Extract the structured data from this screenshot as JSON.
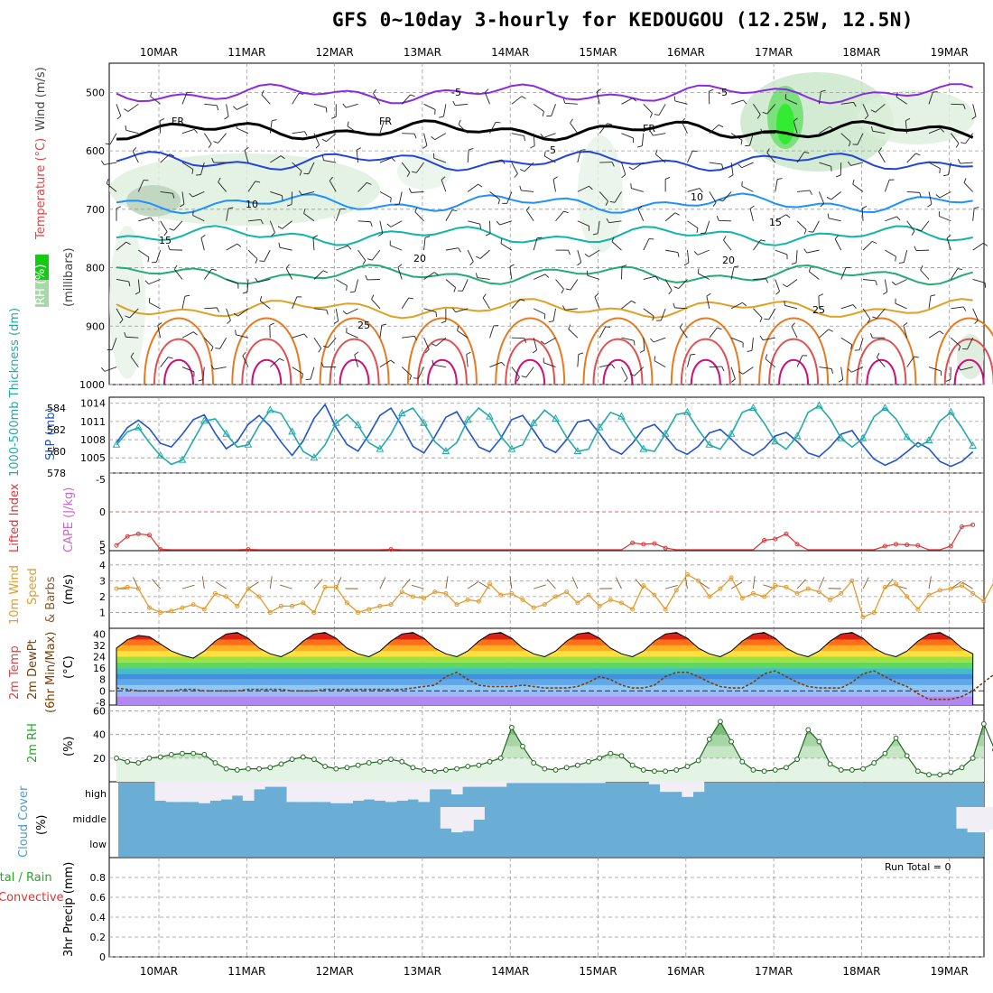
{
  "title": "GFS 0~10day 3-hourly for KEDOUGOU (12.25W, 12.5N)",
  "colors": {
    "rh": "#00cc00",
    "temperature": "#dd4444",
    "wind": "#444444",
    "mb": "#444444",
    "thickness": "#22aaaa",
    "slp": "#2255cc",
    "lifted": "#dd3333",
    "cape": "#cc66cc",
    "windspeed": "#e39b2b",
    "barbs": "#8b5a2b",
    "rh2m": "#22aa22",
    "cloud": "#6aaed6",
    "precip_total": "#22aa22",
    "precip_conv": "#dd3333"
  },
  "chart_data": [
    {
      "id": "upper-air",
      "type": "contour",
      "ylabel_parts": [
        "RH (%)",
        "Temperature (°C)",
        "Wind (m/s)",
        "(millibars)"
      ],
      "y_ticks": [
        500,
        600,
        700,
        800,
        900,
        1000
      ],
      "ylim": [
        450,
        1000
      ],
      "x_ticks": [
        "10MAR",
        "11MAR",
        "12MAR",
        "13MAR",
        "14MAR",
        "15MAR",
        "16MAR",
        "17MAR",
        "18MAR",
        "19MAR"
      ],
      "contour_labels": [
        {
          "text": "-5",
          "color": "#8a2be2"
        },
        {
          "text": "-5",
          "color": "#8a2be2"
        },
        {
          "text": "FR",
          "color": "#000000"
        },
        {
          "text": "FR",
          "color": "#000000"
        },
        {
          "text": "FR",
          "color": "#000000"
        },
        {
          "text": "-5",
          "color": "#2244dd"
        },
        {
          "text": "10",
          "color": "#1e90ff"
        },
        {
          "text": "10",
          "color": "#1e90ff"
        },
        {
          "text": "15",
          "color": "#11b5a8"
        },
        {
          "text": "15",
          "color": "#11b5a8"
        },
        {
          "text": "20",
          "color": "#22aa77"
        },
        {
          "text": "20",
          "color": "#22aa77"
        },
        {
          "text": "25",
          "color": "#e0a020"
        },
        {
          "text": "25",
          "color": "#e0a020"
        }
      ],
      "isotherms": [
        {
          "level": -5,
          "pressure": 502,
          "color": "#8a2be2"
        },
        {
          "level": 0,
          "label": "FR",
          "pressure": 565,
          "color": "#000000"
        },
        {
          "level": 5,
          "pressure": 618,
          "color": "#2244dd"
        },
        {
          "level": 10,
          "pressure": 690,
          "color": "#1e90ff"
        },
        {
          "level": 15,
          "pressure": 745,
          "color": "#11b5a8"
        },
        {
          "level": 20,
          "pressure": 812,
          "color": "#22aa77"
        },
        {
          "level": 25,
          "pressure": 870,
          "color": "#e0a020"
        }
      ]
    },
    {
      "id": "slp-thickness",
      "type": "line",
      "ylabel_left": "1000-500mb Thickness (dm)",
      "ylabel_right": "SLP (mb)",
      "left_ticks": [
        578,
        580,
        582,
        584
      ],
      "right_ticks": [
        1005,
        1008,
        1011,
        1014
      ],
      "ylim_slp": [
        1002.5,
        1015
      ],
      "ylim_thk": [
        578,
        585
      ],
      "series": [
        {
          "name": "SLP (mb)",
          "color": "#2255cc",
          "values": [
            1007.5,
            1010.0,
            1011.2,
            1009.8,
            1007.4,
            1006.8,
            1008.9,
            1011.3,
            1012.1,
            1009.0,
            1006.5,
            1007.7,
            1010.5,
            1012.0,
            1010.2,
            1007.6,
            1005.4,
            1007.8,
            1011.5,
            1013.8,
            1010.0,
            1007.2,
            1006.1,
            1008.8,
            1012.0,
            1013.2,
            1010.3,
            1006.9,
            1005.8,
            1008.5,
            1011.7,
            1012.6,
            1009.6,
            1006.8,
            1006.0,
            1008.2,
            1011.3,
            1012.0,
            1009.5,
            1006.8,
            1005.9,
            1008.0,
            1010.9,
            1011.3,
            1009.0,
            1006.5,
            1005.6,
            1007.4,
            1009.8,
            1010.5,
            1008.6,
            1006.4,
            1005.6,
            1006.9,
            1009.1,
            1009.7,
            1008.1,
            1006.3,
            1005.4,
            1006.6,
            1008.6,
            1009.2,
            1007.7,
            1005.8,
            1005.2,
            1006.8,
            1008.9,
            1009.5,
            1007.0,
            1004.8,
            1003.8,
            1004.6,
            1006.0,
            1007.5,
            1006.5,
            1004.4,
            1003.6,
            1004.4,
            1006.0
          ]
        },
        {
          "name": "1000-500mb Thickness (dm)",
          "color": "#22aaaa",
          "values": [
            580.6,
            581.8,
            582.2,
            580.8,
            579.6,
            578.8,
            579.2,
            581.0,
            582.8,
            583.0,
            581.6,
            580.4,
            580.6,
            582.4,
            583.8,
            583.5,
            581.8,
            580.0,
            579.4,
            580.6,
            582.6,
            583.4,
            582.4,
            580.8,
            580.2,
            581.6,
            583.5,
            584.0,
            582.6,
            580.9,
            580.0,
            580.8,
            582.9,
            584.0,
            583.2,
            581.4,
            580.2,
            580.6,
            582.6,
            583.8,
            583.0,
            581.3,
            580.0,
            580.2,
            582.2,
            583.6,
            583.2,
            581.6,
            580.2,
            580.0,
            581.6,
            583.4,
            583.6,
            582.0,
            580.6,
            580.2,
            581.6,
            583.6,
            584.0,
            582.6,
            580.9,
            580.2,
            581.4,
            583.6,
            584.2,
            583.0,
            581.2,
            580.4,
            581.2,
            583.2,
            584.0,
            583.0,
            581.3,
            580.4,
            581.0,
            582.8,
            583.6,
            582.2,
            580.5
          ]
        }
      ]
    },
    {
      "id": "stability",
      "type": "line",
      "ylabel_parts": [
        "Lifted Index",
        "CAPE (J/kg)"
      ],
      "y_ticks": [
        -5,
        0,
        5
      ],
      "y_tick_labels": [
        "-5",
        "0",
        "5"
      ],
      "right_tick": "5",
      "series": [
        {
          "name": "Lifted Index",
          "color": "#dd3333",
          "values": [
            5.2,
            3.8,
            3.4,
            3.6,
            5.8,
            6,
            6,
            6,
            6,
            6,
            6,
            6,
            5.8,
            6,
            6,
            6,
            6,
            6,
            6,
            6,
            6,
            6,
            6,
            6,
            6,
            5.8,
            6,
            6,
            6,
            6,
            6,
            6,
            6,
            6,
            6,
            6,
            6,
            6,
            6,
            6,
            6,
            6,
            6,
            6,
            6,
            6,
            6,
            4.8,
            5.0,
            4.9,
            5.6,
            6,
            6,
            6,
            6,
            6,
            6,
            6,
            6,
            4.4,
            4.2,
            3.4,
            5.0,
            6,
            6,
            6,
            6,
            6,
            6,
            6,
            5.3,
            5.0,
            5.1,
            5.2,
            6,
            6,
            5.3,
            2.3,
            2.0
          ]
        }
      ]
    },
    {
      "id": "wind10m",
      "type": "line",
      "ylabel_parts": [
        "10m Wind",
        "Speed",
        "& Barbs",
        "(m/s)"
      ],
      "y_ticks": [
        1,
        2,
        3,
        4
      ],
      "ylim": [
        0,
        4.9
      ],
      "series": [
        {
          "name": "10m Wind Speed",
          "color": "#e39b2b",
          "values": [
            2.5,
            2.6,
            2.5,
            1.3,
            1.0,
            1.1,
            1.3,
            1.5,
            1.2,
            2.2,
            2.0,
            1.4,
            2.5,
            2.0,
            1.0,
            1.4,
            1.4,
            1.6,
            1.0,
            2.6,
            2.6,
            1.6,
            1.0,
            1.2,
            1.4,
            1.5,
            2.3,
            2.0,
            1.9,
            2.3,
            2.2,
            1.5,
            1.8,
            1.7,
            2.8,
            2.1,
            2.2,
            1.8,
            1.3,
            1.5,
            2.0,
            2.3,
            1.6,
            2.1,
            1.4,
            1.8,
            1.6,
            1.2,
            2.7,
            2.1,
            1.2,
            2.4,
            3.4,
            3.0,
            2.0,
            2.5,
            3.2,
            1.9,
            2.2,
            2.0,
            2.7,
            2.6,
            2.2,
            2.5,
            2.3,
            1.8,
            2.2,
            3.0,
            0.7,
            1.0,
            2.6,
            2.8,
            2.0,
            1.2,
            2.1,
            2.4,
            2.5,
            2.7,
            2.2,
            1.7,
            3.0,
            2.3,
            2.2,
            2.6,
            1.6,
            2.8,
            4.8,
            3.6
          ]
        }
      ]
    },
    {
      "id": "temp2m",
      "type": "area",
      "ylabel_parts": [
        "2m Temp",
        "2m DewPt",
        "(6hr Min/Max)",
        "(°C)"
      ],
      "y_ticks": [
        -8,
        0,
        8,
        16,
        24,
        32,
        40
      ],
      "ylim": [
        -10,
        44
      ],
      "series": [
        {
          "name": "2m Temp",
          "color": "#000000",
          "values": [
            30,
            36,
            39,
            38,
            33,
            28,
            25,
            23,
            28,
            35,
            40,
            41,
            37,
            30,
            26,
            24,
            28,
            35,
            40,
            41,
            37,
            30,
            26,
            24,
            28,
            35,
            40,
            41,
            37,
            30,
            26,
            24,
            28,
            35,
            40,
            41,
            37,
            30,
            26,
            24,
            28,
            35,
            40,
            41,
            37,
            30,
            26,
            24,
            28,
            35,
            40,
            41,
            37,
            30,
            26,
            24,
            28,
            35,
            40,
            41,
            37,
            30,
            26,
            24,
            28,
            35,
            40,
            41,
            37,
            30,
            26,
            24,
            28,
            35,
            40,
            41,
            37,
            30,
            26
          ]
        },
        {
          "name": "2m DewPt",
          "color": "#7b3f00",
          "values": [
            2,
            1,
            0,
            0,
            0,
            0,
            1,
            1,
            0,
            0,
            0,
            0,
            1,
            1,
            1,
            1,
            0,
            0,
            0,
            1,
            1,
            1,
            1,
            1,
            1,
            1,
            1,
            2,
            3,
            4,
            10,
            13,
            8,
            4,
            3,
            3,
            3,
            4,
            3,
            2,
            2,
            2,
            3,
            6,
            10,
            8,
            4,
            2,
            2,
            4,
            10,
            13,
            13,
            10,
            6,
            3,
            2,
            2,
            6,
            12,
            14,
            10,
            6,
            3,
            2,
            2,
            2,
            6,
            12,
            14,
            10,
            6,
            3,
            -2,
            -6,
            -6,
            -6,
            -4,
            0,
            6,
            12,
            12,
            8,
            4,
            2,
            4,
            10,
            16
          ]
        }
      ]
    },
    {
      "id": "rh2m",
      "type": "area",
      "ylabel_parts": [
        "2m RH",
        "(%)"
      ],
      "y_ticks": [
        20,
        40,
        60
      ],
      "ylim": [
        0,
        65
      ],
      "series": [
        {
          "name": "2m RH",
          "color": "#22aa22",
          "values": [
            20,
            17,
            16,
            20,
            21,
            23,
            24,
            24,
            23,
            16,
            11,
            10,
            11,
            11,
            12,
            15,
            19,
            21,
            19,
            13,
            11,
            12,
            14,
            16,
            17,
            19,
            17,
            12,
            10,
            9,
            10,
            11,
            13,
            14,
            17,
            20,
            46,
            30,
            16,
            11,
            10,
            12,
            14,
            17,
            20,
            24,
            22,
            14,
            10,
            9,
            9,
            10,
            13,
            18,
            36,
            51,
            34,
            17,
            10,
            9,
            10,
            12,
            19,
            44,
            34,
            15,
            10,
            10,
            11,
            16,
            24,
            37,
            22,
            9,
            6,
            6,
            8,
            12,
            20,
            49,
            27,
            12,
            10,
            11,
            18,
            26,
            47,
            63
          ]
        }
      ]
    },
    {
      "id": "cloud",
      "type": "area",
      "ylabel_parts": [
        "Cloud Cover",
        "(%)"
      ],
      "level_labels": [
        "high",
        "middle",
        "low"
      ],
      "series": [
        {
          "name": "high",
          "values": [
            0,
            0,
            0,
            0,
            75,
            80,
            80,
            80,
            85,
            75,
            70,
            55,
            75,
            30,
            20,
            20,
            80,
            80,
            80,
            80,
            85,
            85,
            75,
            70,
            75,
            80,
            75,
            70,
            80,
            30,
            30,
            50,
            20,
            20,
            20,
            20,
            5,
            5,
            5,
            5,
            5,
            5,
            5,
            5,
            5,
            0,
            0,
            0,
            0,
            10,
            40,
            40,
            60,
            40,
            0,
            0,
            0,
            0,
            0,
            0,
            0,
            0,
            0,
            0,
            0,
            0,
            0,
            0,
            0,
            0,
            0,
            0,
            0,
            0,
            0,
            0,
            0,
            0,
            0,
            0,
            0,
            0,
            0,
            5,
            5,
            0,
            0,
            0
          ]
        },
        {
          "name": "middle",
          "values": [
            0,
            0,
            0,
            0,
            0,
            0,
            0,
            0,
            0,
            0,
            0,
            0,
            0,
            0,
            0,
            0,
            0,
            0,
            0,
            0,
            0,
            0,
            0,
            0,
            0,
            0,
            0,
            0,
            0,
            0,
            85,
            100,
            95,
            50,
            0,
            0,
            0,
            0,
            0,
            0,
            0,
            0,
            0,
            0,
            0,
            0,
            0,
            0,
            0,
            0,
            0,
            0,
            0,
            0,
            0,
            0,
            0,
            0,
            0,
            0,
            0,
            0,
            0,
            0,
            0,
            0,
            0,
            0,
            0,
            0,
            0,
            0,
            0,
            0,
            0,
            0,
            0,
            85,
            100,
            100,
            90,
            5,
            10,
            20,
            20,
            20,
            20,
            20
          ]
        },
        {
          "name": "low",
          "values": []
        }
      ]
    },
    {
      "id": "precip",
      "type": "bar",
      "ylabel_parts": [
        "Total / Rain",
        "Convective",
        "3hr Precip (mm)"
      ],
      "y_ticks": [
        0,
        0.2,
        0.4,
        0.6,
        0.8
      ],
      "ylim": [
        0,
        1.0
      ],
      "run_total": "Run Total = 0",
      "series": [
        {
          "name": "Total / Rain",
          "values": []
        },
        {
          "name": "Convective",
          "values": []
        }
      ]
    }
  ]
}
